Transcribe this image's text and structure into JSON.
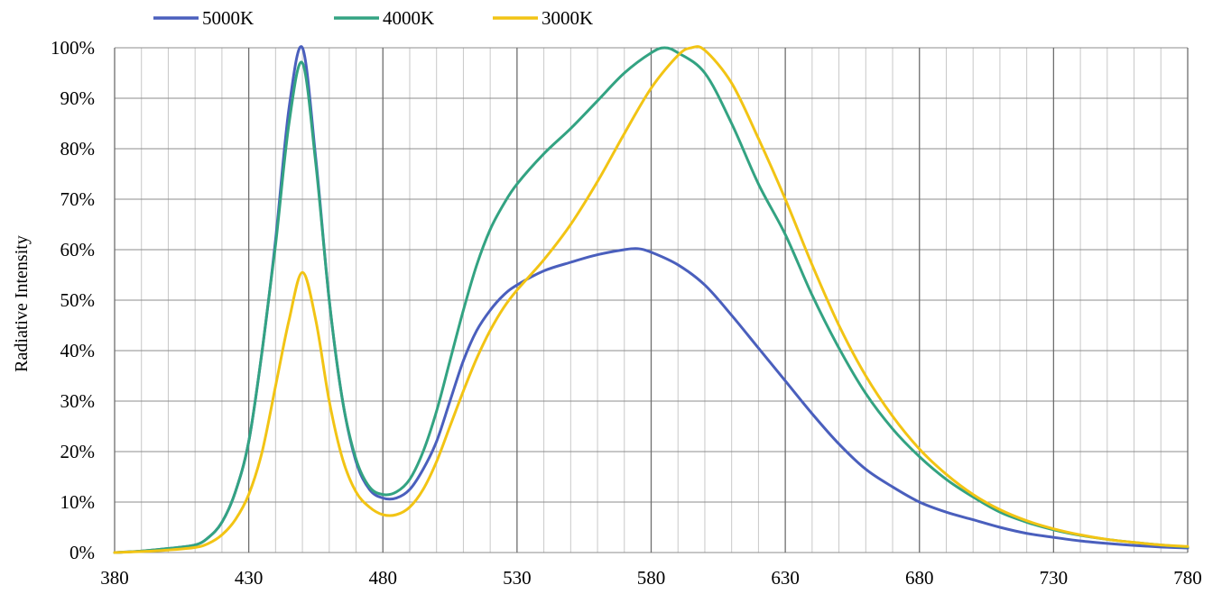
{
  "chart_data": {
    "type": "line",
    "title": "",
    "xlabel": "",
    "ylabel": "Radiative Intensity",
    "xlim": [
      380,
      780
    ],
    "ylim": [
      0,
      100
    ],
    "x_ticks": [
      380,
      430,
      480,
      530,
      580,
      630,
      680,
      730,
      780
    ],
    "x_tick_labels": [
      "380",
      "430",
      "480",
      "530",
      "580",
      "630",
      "680",
      "730",
      "780"
    ],
    "y_ticks": [
      0,
      10,
      20,
      30,
      40,
      50,
      60,
      70,
      80,
      90,
      100
    ],
    "y_tick_labels": [
      "0%",
      "10%",
      "20%",
      "30%",
      "40%",
      "50%",
      "60%",
      "70%",
      "80%",
      "90%",
      "100%"
    ],
    "grid": {
      "major_x": true,
      "minor_x_step": 10,
      "major_y": true
    },
    "legend": {
      "position": "top-left",
      "orientation": "horizontal"
    },
    "series": [
      {
        "name": "5000K",
        "color": "#4a5fbd",
        "points": [
          [
            380,
            0
          ],
          [
            390,
            0.3
          ],
          [
            400,
            0.8
          ],
          [
            410,
            1.5
          ],
          [
            415,
            3
          ],
          [
            420,
            6
          ],
          [
            425,
            12
          ],
          [
            430,
            22
          ],
          [
            435,
            40
          ],
          [
            440,
            62
          ],
          [
            445,
            88
          ],
          [
            450,
            100
          ],
          [
            455,
            78
          ],
          [
            460,
            50
          ],
          [
            465,
            30
          ],
          [
            470,
            18
          ],
          [
            475,
            12.5
          ],
          [
            480,
            10.8
          ],
          [
            485,
            10.8
          ],
          [
            490,
            12.5
          ],
          [
            495,
            16.5
          ],
          [
            500,
            22
          ],
          [
            505,
            30
          ],
          [
            510,
            38
          ],
          [
            515,
            44
          ],
          [
            520,
            48
          ],
          [
            525,
            51
          ],
          [
            530,
            53
          ],
          [
            540,
            55.8
          ],
          [
            550,
            57.5
          ],
          [
            560,
            59
          ],
          [
            570,
            60
          ],
          [
            575,
            60.2
          ],
          [
            580,
            59.5
          ],
          [
            590,
            57
          ],
          [
            600,
            53
          ],
          [
            610,
            47
          ],
          [
            620,
            40.5
          ],
          [
            630,
            34
          ],
          [
            640,
            27.5
          ],
          [
            650,
            21.5
          ],
          [
            660,
            16.5
          ],
          [
            670,
            13
          ],
          [
            680,
            10
          ],
          [
            690,
            8
          ],
          [
            700,
            6.5
          ],
          [
            710,
            5
          ],
          [
            720,
            3.8
          ],
          [
            730,
            3
          ],
          [
            740,
            2.3
          ],
          [
            750,
            1.8
          ],
          [
            760,
            1.4
          ],
          [
            770,
            1.1
          ],
          [
            780,
            0.9
          ]
        ]
      },
      {
        "name": "4000K",
        "color": "#33a382",
        "points": [
          [
            380,
            0
          ],
          [
            390,
            0.3
          ],
          [
            400,
            0.8
          ],
          [
            410,
            1.5
          ],
          [
            415,
            3
          ],
          [
            420,
            6
          ],
          [
            425,
            12
          ],
          [
            430,
            22
          ],
          [
            435,
            40
          ],
          [
            440,
            61
          ],
          [
            445,
            85
          ],
          [
            450,
            97
          ],
          [
            455,
            77
          ],
          [
            460,
            50
          ],
          [
            465,
            30
          ],
          [
            470,
            18.5
          ],
          [
            475,
            13
          ],
          [
            480,
            11.5
          ],
          [
            485,
            12
          ],
          [
            490,
            14.5
          ],
          [
            495,
            20
          ],
          [
            500,
            28
          ],
          [
            505,
            38
          ],
          [
            510,
            48
          ],
          [
            515,
            57
          ],
          [
            520,
            64
          ],
          [
            525,
            69
          ],
          [
            530,
            73
          ],
          [
            540,
            79
          ],
          [
            550,
            84
          ],
          [
            560,
            89.5
          ],
          [
            570,
            95
          ],
          [
            580,
            99
          ],
          [
            585,
            100
          ],
          [
            590,
            99
          ],
          [
            600,
            95
          ],
          [
            610,
            85
          ],
          [
            620,
            73
          ],
          [
            630,
            63
          ],
          [
            640,
            51
          ],
          [
            650,
            40.5
          ],
          [
            660,
            31.5
          ],
          [
            670,
            24.5
          ],
          [
            680,
            19
          ],
          [
            690,
            14.5
          ],
          [
            700,
            11
          ],
          [
            710,
            8
          ],
          [
            720,
            6
          ],
          [
            730,
            4.5
          ],
          [
            740,
            3.4
          ],
          [
            750,
            2.6
          ],
          [
            760,
            2
          ],
          [
            770,
            1.5
          ],
          [
            780,
            1.1
          ]
        ]
      },
      {
        "name": "3000K",
        "color": "#f2c414",
        "points": [
          [
            380,
            0
          ],
          [
            390,
            0.2
          ],
          [
            400,
            0.5
          ],
          [
            410,
            1
          ],
          [
            415,
            1.8
          ],
          [
            420,
            3.5
          ],
          [
            425,
            6.5
          ],
          [
            430,
            11.5
          ],
          [
            435,
            20
          ],
          [
            440,
            33
          ],
          [
            445,
            46
          ],
          [
            450,
            55.5
          ],
          [
            455,
            46
          ],
          [
            460,
            30
          ],
          [
            465,
            18.5
          ],
          [
            470,
            12
          ],
          [
            475,
            9
          ],
          [
            480,
            7.5
          ],
          [
            485,
            7.5
          ],
          [
            490,
            9
          ],
          [
            495,
            12.5
          ],
          [
            500,
            18
          ],
          [
            505,
            25
          ],
          [
            510,
            32
          ],
          [
            515,
            38.5
          ],
          [
            520,
            44
          ],
          [
            525,
            48.5
          ],
          [
            530,
            52
          ],
          [
            540,
            58
          ],
          [
            550,
            65
          ],
          [
            560,
            73.5
          ],
          [
            570,
            83
          ],
          [
            580,
            92
          ],
          [
            590,
            98.5
          ],
          [
            595,
            100
          ],
          [
            600,
            99.5
          ],
          [
            610,
            93
          ],
          [
            620,
            82
          ],
          [
            630,
            70
          ],
          [
            640,
            57
          ],
          [
            650,
            45
          ],
          [
            660,
            35
          ],
          [
            670,
            27
          ],
          [
            680,
            20.5
          ],
          [
            690,
            15.5
          ],
          [
            700,
            11.5
          ],
          [
            710,
            8.5
          ],
          [
            720,
            6.3
          ],
          [
            730,
            4.7
          ],
          [
            740,
            3.5
          ],
          [
            750,
            2.6
          ],
          [
            760,
            2
          ],
          [
            770,
            1.5
          ],
          [
            780,
            1.2
          ]
        ]
      }
    ]
  }
}
